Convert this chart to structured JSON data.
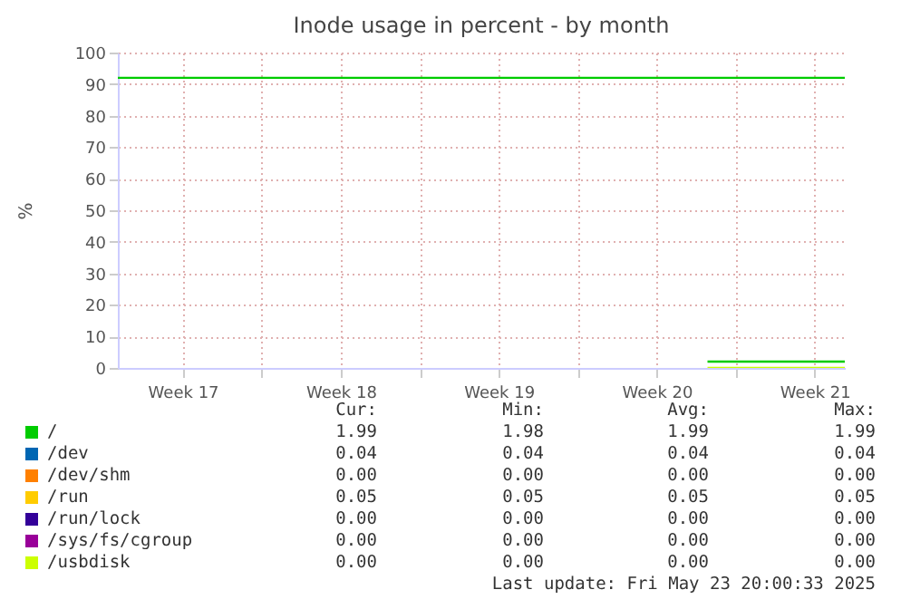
{
  "chart_data": {
    "type": "line",
    "title": "Inode usage in percent - by month",
    "ylabel": "%",
    "xlim": [
      "2025-04-21T15:00",
      "2025-05-23T20:00"
    ],
    "xticks": [
      {
        "value": "2025-04-24T12:00",
        "label": "Week 17"
      },
      {
        "value": "2025-04-28",
        "label": null
      },
      {
        "value": "2025-05-01T12:00",
        "label": "Week 18"
      },
      {
        "value": "2025-05-05",
        "label": null
      },
      {
        "value": "2025-05-08T12:00",
        "label": "Week 19"
      },
      {
        "value": "2025-05-12",
        "label": null
      },
      {
        "value": "2025-05-15T12:00",
        "label": "Week 20"
      },
      {
        "value": "2025-05-19",
        "label": null
      },
      {
        "value": "2025-05-22T12:00",
        "label": "Week 21"
      }
    ],
    "ylim": [
      0,
      100
    ],
    "yticks": [
      0,
      10,
      20,
      30,
      40,
      50,
      60,
      70,
      80,
      90,
      100
    ],
    "grid": true,
    "legend": "bottom",
    "series": [
      {
        "name": "/",
        "color": "#00cc00",
        "x": [
          "2025-05-17T18:00",
          "2025-05-23T20:00"
        ],
        "values": [
          1.99,
          1.99
        ]
      },
      {
        "name": "/dev",
        "color": "#0066b3"
      },
      {
        "name": "/dev/shm",
        "color": "#ff8000"
      },
      {
        "name": "/run",
        "color": "#ffcc00"
      },
      {
        "name": "/run/lock",
        "color": "#330099"
      },
      {
        "name": "/sys/fs/cgroup",
        "color": "#990099"
      },
      {
        "name": "/usbdisk",
        "color": "#ccff00",
        "x": [
          "2025-05-17T18:00",
          "2025-05-23T20:00"
        ],
        "values": [
          0,
          0
        ]
      }
    ],
    "ref_lines": [
      {
        "axis": "y",
        "value": 92,
        "label": null,
        "color": "#00cc00"
      }
    ],
    "annotations": [
      "Cur:",
      "Min:",
      "Avg:",
      "Max:",
      "1.99",
      "1.98",
      "1.99",
      "1.99",
      "0.04",
      "0.04",
      "0.04",
      "0.04",
      "0.00",
      "0.00",
      "0.00",
      "0.00",
      "0.05",
      "0.05",
      "0.05",
      "0.05",
      "0.00",
      "0.00",
      "0.00",
      "0.00",
      "0.00",
      "0.00",
      "0.00",
      "0.00",
      "0.00",
      "0.00",
      "0.00",
      "0.00",
      "Last update: Fri May 23 20:00:33 2025"
    ]
  }
}
